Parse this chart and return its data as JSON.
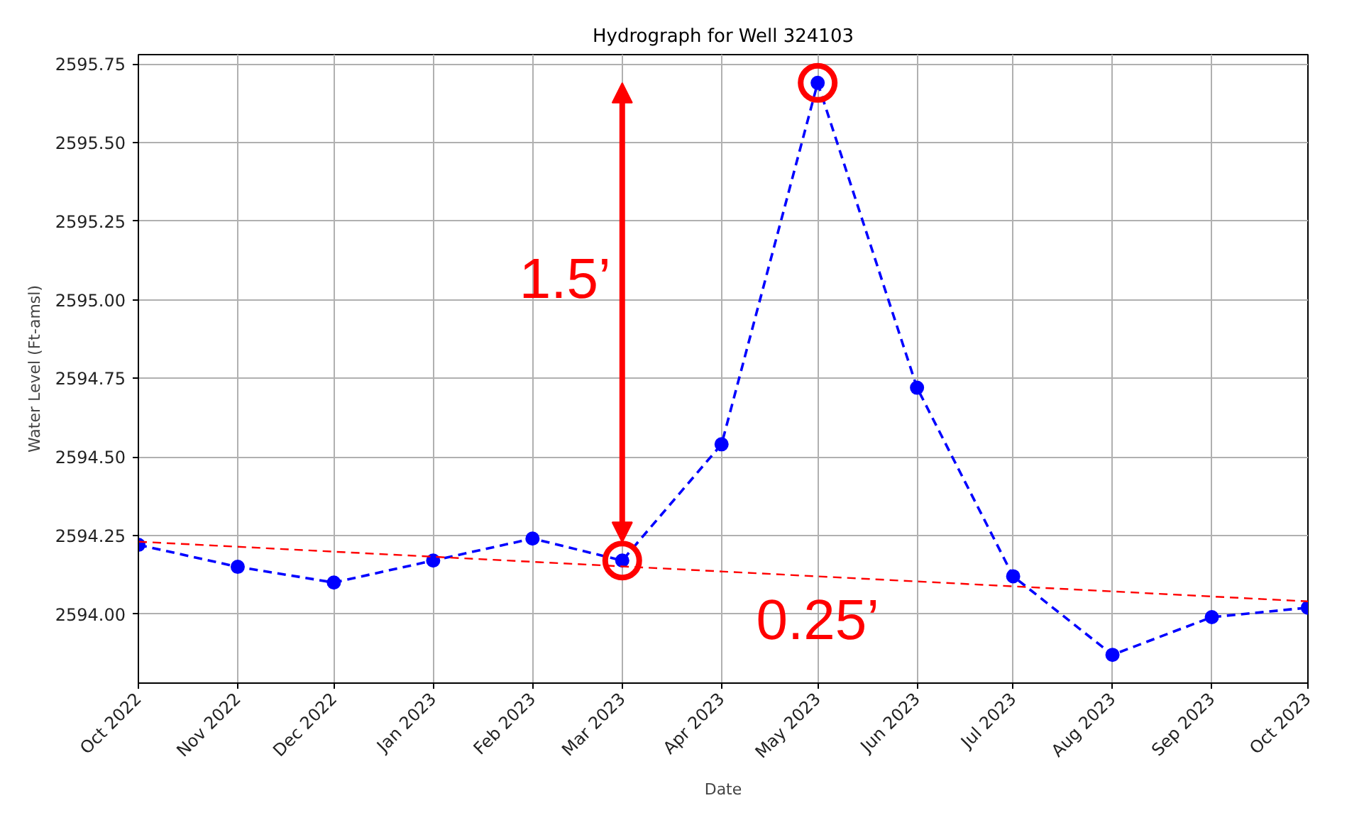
{
  "chart_data": {
    "type": "line",
    "title": "Hydrograph for Well 324103",
    "xlabel": "Date",
    "ylabel": "Water Level (Ft-amsl)",
    "x": [
      "2022-10",
      "2022-11",
      "2022-12",
      "2023-01",
      "2023-02",
      "2023-03",
      "2023-04",
      "2023-05",
      "2023-06",
      "2023-07",
      "2023-08",
      "2023-09",
      "2023-10"
    ],
    "series": [
      {
        "color": "#0000ff",
        "values": [
          2594.22,
          2594.15,
          2594.1,
          2594.17,
          2594.24,
          2594.17,
          2594.54,
          2595.69,
          2594.72,
          2594.12,
          2593.87,
          2593.99,
          2594.02
        ],
        "marker": "circle",
        "line_style": "dashed"
      },
      {
        "type": "line",
        "color": "#ff0000",
        "x": [
          "2022-10",
          "2023-10"
        ],
        "values": [
          2594.23,
          2594.04
        ],
        "marker": "none",
        "line_style": "dashed"
      },
      {
        "type": "scatter",
        "color": "#ff0000",
        "x": [
          "2023-03",
          "2023-05"
        ],
        "values": [
          2594.17,
          2595.69
        ],
        "marker": "circle"
      }
    ],
    "annotations": [
      "1.5’",
      "0.25’"
    ],
    "xlim": [
      "2022-10",
      "2023-10"
    ],
    "ylim": [
      2593.78,
      2595.78
    ],
    "xticks": [
      {
        "value": "2022-10",
        "label": "Oct 2022"
      },
      {
        "value": "2022-11",
        "label": "Nov 2022"
      },
      {
        "value": "2022-12",
        "label": "Dec 2022"
      },
      {
        "value": "2023-01",
        "label": "Jan 2023"
      },
      {
        "value": "2023-02",
        "label": "Feb 2023"
      },
      {
        "value": "2023-03",
        "label": "Mar 2023"
      },
      {
        "value": "2023-04",
        "label": "Apr 2023"
      },
      {
        "value": "2023-05",
        "label": "May 2023"
      },
      {
        "value": "2023-06",
        "label": "Jun 2023"
      },
      {
        "value": "2023-07",
        "label": "Jul 2023"
      },
      {
        "value": "2023-08",
        "label": "Aug 2023"
      },
      {
        "value": "2023-09",
        "label": "Sep 2023"
      },
      {
        "value": "2023-10",
        "label": "Oct 2023"
      }
    ],
    "yticks": [
      {
        "value": 2594.0,
        "label": "2594.00"
      },
      {
        "value": 2594.25,
        "label": "2594.25"
      },
      {
        "value": 2594.5,
        "label": "2594.50"
      },
      {
        "value": 2594.75,
        "label": "2594.75"
      },
      {
        "value": 2595.0,
        "label": "2595.00"
      },
      {
        "value": 2595.25,
        "label": "2595.25"
      },
      {
        "value": 2595.5,
        "label": "2595.50"
      },
      {
        "value": 2595.75,
        "label": "2595.75"
      }
    ],
    "grid": true
  }
}
